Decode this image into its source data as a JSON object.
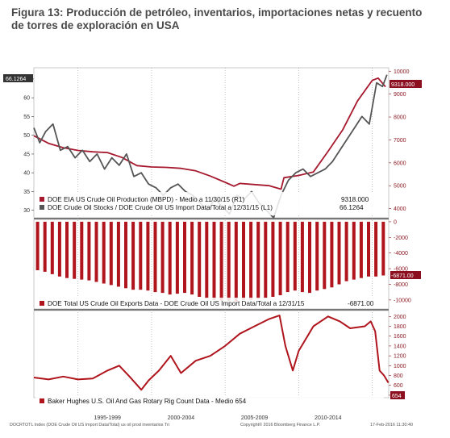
{
  "figure": {
    "title_line1": "Figura 13: Producción de petróleo, inventarios, importaciones netas y recuento",
    "title_line2": "de torres de exploración en USA"
  },
  "colors": {
    "production": "#a6192e",
    "stocks": "#555555",
    "exports": "#b0141c",
    "rigs": "#b0141c",
    "flag_left": "#333333",
    "flag_right": "#8b0f1e"
  },
  "chart_data": [
    {
      "type": "line",
      "panel": "top",
      "legend_placement": "bottom-left",
      "grid": false,
      "x_range": [
        1992.0,
        2016.12
      ],
      "left_axis": {
        "ticks": [
          "30",
          "35",
          "40",
          "45",
          "50",
          "55",
          "60",
          "65"
        ],
        "ylim": [
          28,
          68
        ]
      },
      "right_axis": {
        "ticks": [
          "4000",
          "5000",
          "6000",
          "7000",
          "8000",
          "9000",
          "10000"
        ],
        "ylim": [
          3600,
          10150
        ]
      },
      "series": [
        {
          "name": "DOE EIA US Crude Oil Production (MBPD) - Medio a 11/30/15 (R1)",
          "axis": "right",
          "last_value": "9318.000",
          "points": [
            [
              1992.0,
              7180
            ],
            [
              1993.0,
              6850
            ],
            [
              1994.0,
              6660
            ],
            [
              1995.0,
              6540
            ],
            [
              1996.0,
              6480
            ],
            [
              1997.0,
              6450
            ],
            [
              1998.0,
              6230
            ],
            [
              1999.0,
              5880
            ],
            [
              2000.0,
              5820
            ],
            [
              2001.0,
              5800
            ],
            [
              2002.0,
              5760
            ],
            [
              2003.0,
              5650
            ],
            [
              2004.0,
              5420
            ],
            [
              2005.0,
              5150
            ],
            [
              2005.6,
              4980
            ],
            [
              2006.0,
              5100
            ],
            [
              2007.0,
              5050
            ],
            [
              2008.0,
              5000
            ],
            [
              2008.8,
              4850
            ],
            [
              2009.0,
              5350
            ],
            [
              2010.0,
              5450
            ],
            [
              2011.0,
              5600
            ],
            [
              2012.0,
              6500
            ],
            [
              2013.0,
              7450
            ],
            [
              2014.0,
              8700
            ],
            [
              2015.0,
              9600
            ],
            [
              2015.4,
              9700
            ],
            [
              2015.9,
              9318
            ]
          ]
        },
        {
          "name": "DOE Crude Oil Stocks / DOE Crude Oil US Import Data/Total a 12/31/15 (L1)",
          "axis": "left",
          "last_value": "66.1264",
          "points": [
            [
              1992.0,
              52
            ],
            [
              1992.4,
              48
            ],
            [
              1992.8,
              51
            ],
            [
              1993.3,
              53
            ],
            [
              1993.8,
              46
            ],
            [
              1994.3,
              47
            ],
            [
              1994.8,
              44
            ],
            [
              1995.3,
              46
            ],
            [
              1995.8,
              43
            ],
            [
              1996.3,
              45
            ],
            [
              1996.8,
              41
            ],
            [
              1997.3,
              44
            ],
            [
              1997.8,
              42
            ],
            [
              1998.3,
              45
            ],
            [
              1998.8,
              39
            ],
            [
              1999.3,
              40
            ],
            [
              1999.8,
              37
            ],
            [
              2000.3,
              36
            ],
            [
              2000.8,
              34
            ],
            [
              2001.3,
              36
            ],
            [
              2001.8,
              37
            ],
            [
              2002.3,
              35
            ],
            [
              2002.8,
              34
            ],
            [
              2003.3,
              32
            ],
            [
              2003.8,
              30
            ],
            [
              2004.3,
              33
            ],
            [
              2004.8,
              31
            ],
            [
              2005.3,
              29
            ],
            [
              2005.8,
              34
            ],
            [
              2006.3,
              33
            ],
            [
              2006.8,
              35
            ],
            [
              2007.3,
              32
            ],
            [
              2007.8,
              30
            ],
            [
              2008.3,
              28
            ],
            [
              2008.8,
              34
            ],
            [
              2009.3,
              38
            ],
            [
              2009.8,
              40
            ],
            [
              2010.3,
              41
            ],
            [
              2010.8,
              39
            ],
            [
              2011.3,
              40
            ],
            [
              2011.8,
              41
            ],
            [
              2012.3,
              43
            ],
            [
              2012.8,
              46
            ],
            [
              2013.3,
              49
            ],
            [
              2013.8,
              52
            ],
            [
              2014.3,
              55
            ],
            [
              2014.8,
              53
            ],
            [
              2015.3,
              64
            ],
            [
              2015.7,
              63
            ],
            [
              2016.0,
              66.1264
            ]
          ]
        }
      ]
    },
    {
      "type": "bar",
      "panel": "middle",
      "legend_placement": "bottom-left",
      "x_range": [
        1992.0,
        2016.12
      ],
      "right_axis": {
        "ticks": [
          "0",
          "-2000",
          "-4000",
          "-6000",
          "-8000",
          "-10000"
        ],
        "ylim": [
          -11150,
          300
        ]
      },
      "series": [
        {
          "name": "DOE Total US Crude Oil Exports Data - DOE Crude Oil US Import Data/Total a 12/31/15",
          "last_value": "-6871.00",
          "points": [
            [
              1992.25,
              -6200
            ],
            [
              1992.75,
              -6400
            ],
            [
              1993.25,
              -6700
            ],
            [
              1993.75,
              -7000
            ],
            [
              1994.25,
              -7200
            ],
            [
              1994.75,
              -7300
            ],
            [
              1995.25,
              -7400
            ],
            [
              1995.75,
              -7500
            ],
            [
              1996.25,
              -7700
            ],
            [
              1996.75,
              -7900
            ],
            [
              1997.25,
              -8100
            ],
            [
              1997.75,
              -8300
            ],
            [
              1998.25,
              -8500
            ],
            [
              1998.75,
              -8700
            ],
            [
              1999.25,
              -8700
            ],
            [
              1999.75,
              -8800
            ],
            [
              2000.25,
              -9000
            ],
            [
              2000.75,
              -9100
            ],
            [
              2001.25,
              -9300
            ],
            [
              2001.75,
              -9200
            ],
            [
              2002.25,
              -9100
            ],
            [
              2002.75,
              -9300
            ],
            [
              2003.25,
              -9600
            ],
            [
              2003.75,
              -9800
            ],
            [
              2004.25,
              -10000
            ],
            [
              2004.75,
              -10100
            ],
            [
              2005.25,
              -10100
            ],
            [
              2005.75,
              -10200
            ],
            [
              2006.25,
              -10000
            ],
            [
              2006.75,
              -10000
            ],
            [
              2007.25,
              -9900
            ],
            [
              2007.75,
              -9800
            ],
            [
              2008.25,
              -9600
            ],
            [
              2008.75,
              -9400
            ],
            [
              2009.25,
              -9000
            ],
            [
              2009.75,
              -8800
            ],
            [
              2010.25,
              -9000
            ],
            [
              2010.75,
              -9100
            ],
            [
              2011.25,
              -8800
            ],
            [
              2011.75,
              -8600
            ],
            [
              2012.25,
              -8400
            ],
            [
              2012.75,
              -8000
            ],
            [
              2013.25,
              -7600
            ],
            [
              2013.75,
              -7400
            ],
            [
              2014.25,
              -7200
            ],
            [
              2014.75,
              -7000
            ],
            [
              2015.25,
              -7000
            ],
            [
              2015.75,
              -6871
            ]
          ]
        }
      ]
    },
    {
      "type": "line",
      "panel": "bottom",
      "legend_placement": "bottom-left",
      "x_range": [
        1992.0,
        2016.12
      ],
      "x_tick_labels": [
        "1995-1999",
        "2000-2004",
        "2005-2009",
        "2010-2014"
      ],
      "right_axis": {
        "ticks": [
          "400",
          "600",
          "800",
          "1000",
          "1200",
          "1400",
          "1600",
          "1800",
          "2000"
        ],
        "ylim": [
          350,
          2120
        ]
      },
      "series": [
        {
          "name": "Baker Hughes U.S. Oil And Gas Rotary Rig Count Data - Medio 654",
          "last_value": "654",
          "points": [
            [
              1992.0,
              760
            ],
            [
              1993.0,
              720
            ],
            [
              1994.0,
              780
            ],
            [
              1995.0,
              720
            ],
            [
              1996.0,
              740
            ],
            [
              1997.0,
              900
            ],
            [
              1997.8,
              1000
            ],
            [
              1998.5,
              780
            ],
            [
              1999.3,
              510
            ],
            [
              1999.8,
              700
            ],
            [
              2000.5,
              900
            ],
            [
              2001.3,
              1200
            ],
            [
              2002.0,
              850
            ],
            [
              2003.0,
              1100
            ],
            [
              2004.0,
              1200
            ],
            [
              2005.0,
              1400
            ],
            [
              2006.0,
              1650
            ],
            [
              2007.0,
              1800
            ],
            [
              2008.0,
              1950
            ],
            [
              2008.7,
              2020
            ],
            [
              2009.1,
              1400
            ],
            [
              2009.6,
              900
            ],
            [
              2010.0,
              1300
            ],
            [
              2011.0,
              1800
            ],
            [
              2012.0,
              2000
            ],
            [
              2012.8,
              1900
            ],
            [
              2013.5,
              1760
            ],
            [
              2014.5,
              1800
            ],
            [
              2014.9,
              1900
            ],
            [
              2015.2,
              1700
            ],
            [
              2015.5,
              900
            ],
            [
              2015.8,
              800
            ],
            [
              2016.1,
              654
            ]
          ]
        }
      ]
    }
  ],
  "flags": {
    "left_top": "66.1264",
    "right_top": "9318.000",
    "right_mid": "-6871.00",
    "right_bottom": "654"
  },
  "footer": {
    "left": "DOCRTOTL Index (DOE Crude Oil US Import Data/Total) us oil prod inventarios  Tri",
    "center": "Copyright© 2016 Bloomberg Finance L.P.",
    "right": "17-Feb-2016 11:30:40"
  }
}
